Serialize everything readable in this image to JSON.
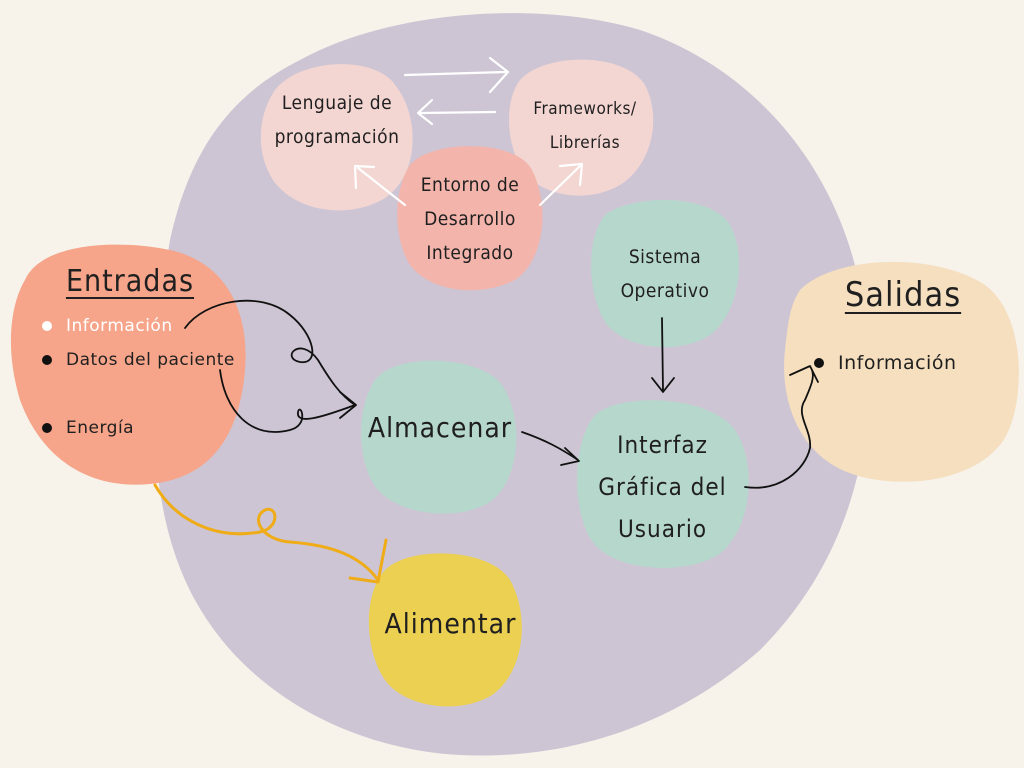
{
  "colors": {
    "background": "#f7f2ea",
    "main_blob": "#cdc5d4",
    "inputs_blob": "#f6a58a",
    "outputs_blob": "#f5dfbf",
    "light_pink": "#f3d6d2",
    "salmon": "#f2b4ab",
    "mint": "#b6d7cb",
    "yellow": "#ecd052",
    "feed_arrow": "#f0ac17"
  },
  "nodes": {
    "lenguaje": [
      "Lenguaje de",
      "programación"
    ],
    "frameworks": [
      "Frameworks/",
      "Librerías"
    ],
    "entorno": [
      "Entorno de",
      "Desarrollo",
      "Integrado"
    ],
    "sistema": [
      "Sistema",
      "Operativo"
    ],
    "almacenar": "Almacenar",
    "interfaz": [
      "Interfaz",
      "Gráfica del",
      "Usuario"
    ],
    "alimentar": "Alimentar"
  },
  "entradas": {
    "title": "Entradas",
    "items": [
      "Información",
      "Datos del paciente",
      "Energía"
    ]
  },
  "salidas": {
    "title": "Salidas",
    "items": [
      "Información"
    ]
  }
}
